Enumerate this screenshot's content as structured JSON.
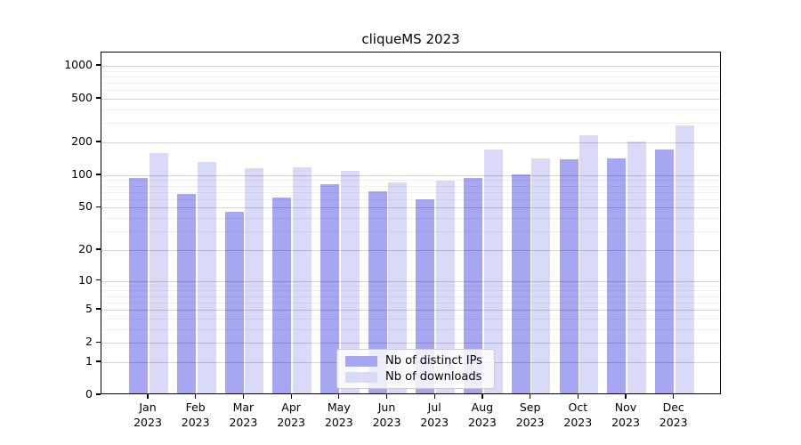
{
  "chart_data": {
    "type": "bar",
    "title": "cliqueMS 2023",
    "scale": "log10(1+x)",
    "grid": true,
    "legend_position": "lower-center-inside",
    "categories": [
      "Jan",
      "Feb",
      "Mar",
      "Apr",
      "May",
      "Jun",
      "Jul",
      "Aug",
      "Sep",
      "Oct",
      "Nov",
      "Dec"
    ],
    "category_year": "2023",
    "series": [
      {
        "name": "Nb of distinct IPs",
        "color": "#a6a6f1",
        "values": [
          91,
          65,
          44,
          60,
          79,
          68,
          58,
          91,
          98,
          135,
          138,
          165
        ]
      },
      {
        "name": "Nb of downloads",
        "color": "#d9d9f8",
        "values": [
          155,
          127,
          112,
          114,
          105,
          83,
          86,
          165,
          138,
          225,
          196,
          273
        ]
      }
    ],
    "y_ticks": [
      0,
      1,
      2,
      5,
      10,
      20,
      50,
      100,
      200,
      500,
      1000
    ],
    "ylim": [
      0,
      1350
    ],
    "xlabel": "",
    "ylabel": ""
  }
}
